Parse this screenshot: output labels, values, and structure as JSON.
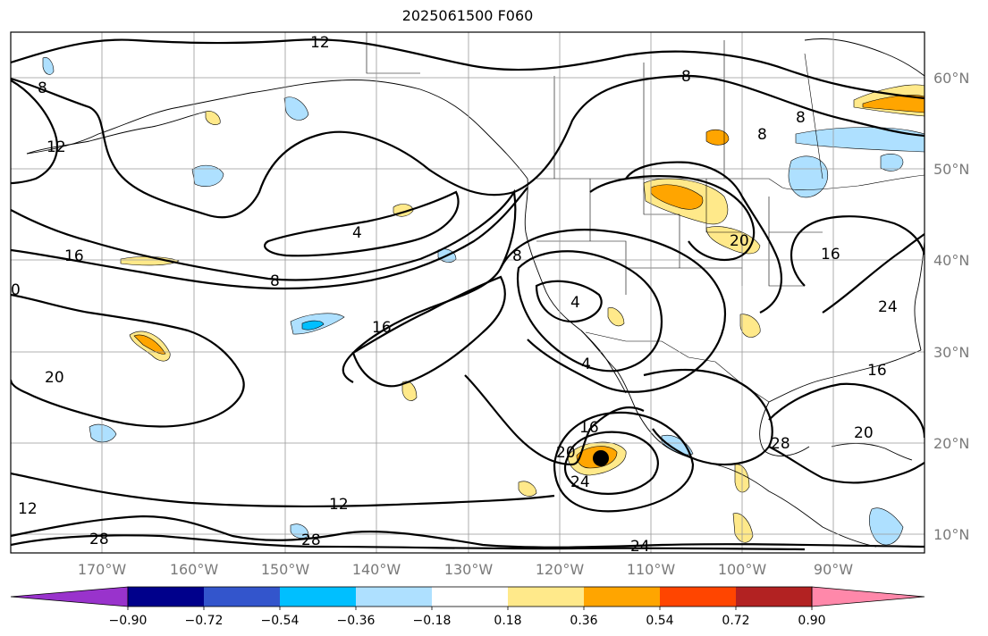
{
  "title": "2025061500 F060",
  "map": {
    "latitude_labels": [
      "60°N",
      "50°N",
      "40°N",
      "30°N",
      "20°N",
      "10°N"
    ],
    "longitude_labels": [
      "170°W",
      "160°W",
      "150°W",
      "140°W",
      "130°W",
      "120°W",
      "110°W",
      "100°W",
      "90°W"
    ],
    "contour_labels": [
      "12",
      "8",
      "12",
      "4",
      "8",
      "16",
      "8",
      "16",
      "20",
      "4",
      "4",
      "16",
      "20",
      "24",
      "12",
      "28",
      "28",
      "24",
      "16",
      "24",
      "28",
      "20",
      "8",
      "8",
      "16",
      "20",
      "8",
      "0"
    ],
    "contour_color": "#000000",
    "marker": "filled-circle"
  },
  "colorbar": {
    "tick_labels": [
      "−0.90",
      "−0.72",
      "−0.54",
      "−0.36",
      "−0.18",
      "0.18",
      "0.36",
      "0.54",
      "0.72",
      "0.90"
    ],
    "colors": [
      "#9933cc",
      "#00008b",
      "#3355cc",
      "#00bfff",
      "#aee0ff",
      "#ffffff",
      "#ffe98a",
      "#ffa500",
      "#ff4500",
      "#b22222",
      "#ff88aa"
    ]
  }
}
